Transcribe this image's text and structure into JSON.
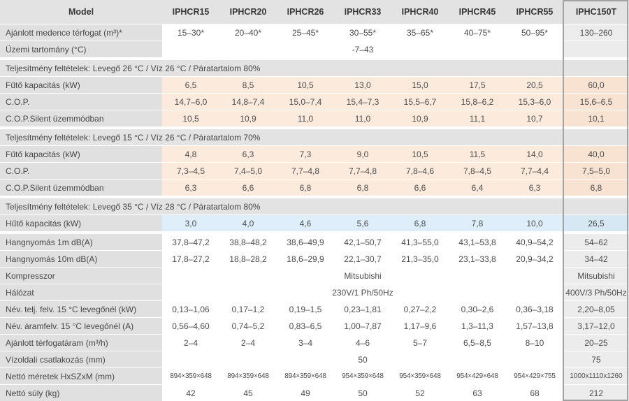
{
  "colors": {
    "header_gray": "#e3e3e3",
    "label_gray": "#e0e0e0",
    "heating_peach": "#fcebdc",
    "cooling_blue": "#deeefa",
    "last_column_tint": "#ececec",
    "last_column_border": "#a3a3a3"
  },
  "table": {
    "header": {
      "model_label": "Model",
      "columns": [
        "IPHCR15",
        "IPHCR20",
        "IPHCR26",
        "IPHCR33",
        "IPHCR40",
        "IPHCR45",
        "IPHCR55"
      ],
      "last_column": "IPHC150T"
    },
    "rows": [
      {
        "type": "data",
        "bg": "white",
        "label": "Ajánlott medence térfogat (m³)*",
        "cells": [
          "15–30*",
          "20–40*",
          "25–45*",
          "30–55*",
          "35–65*",
          "40–75*",
          "50–95*"
        ],
        "last": "130–260"
      },
      {
        "type": "data",
        "bg": "white",
        "label": "Üzemi tartomány (°C)",
        "span": "-7–43",
        "last": ""
      },
      {
        "type": "section",
        "label": "Teljesítmény feltételek: Levegő 26 °C / Víz 26 °C / Páratartalom 80%"
      },
      {
        "type": "data",
        "bg": "peach",
        "label": "Fűtő kapacitás (kW)",
        "cells": [
          "6,5",
          "8,5",
          "10,5",
          "13,0",
          "15,0",
          "17,5",
          "20,5"
        ],
        "last": "60,0"
      },
      {
        "type": "data",
        "bg": "peach",
        "label": "C.O.P.",
        "cells": [
          "14,7–6,0",
          "14,8–7,4",
          "15,0–7,4",
          "15,4–7,3",
          "15,5–6,7",
          "15,8–6,2",
          "15,3–6,0"
        ],
        "last": "15,6–6,5"
      },
      {
        "type": "data",
        "bg": "peach",
        "label": "C.O.P.Silent üzemmódban",
        "cells": [
          "10,5",
          "10,9",
          "11,0",
          "11,0",
          "10,9",
          "11,1",
          "10,7"
        ],
        "last": "10,1"
      },
      {
        "type": "section",
        "label": "Teljesítmény feltételek: Levegő 15 °C / Víz 26 °C / Páratartalom 70%"
      },
      {
        "type": "data",
        "bg": "peach",
        "label": "Fűtő kapacitás (kW)",
        "cells": [
          "4,8",
          "6,3",
          "7,3",
          "9,0",
          "10,5",
          "11,5",
          "14,0"
        ],
        "last": "40,0"
      },
      {
        "type": "data",
        "bg": "peach",
        "label": "C.O.P.",
        "cells": [
          "7,3–4,5",
          "7,4–5,0",
          "7,7–4,8",
          "7,7–4,8",
          "7,8–4,6",
          "7,8–4,5",
          "7,7–4,4"
        ],
        "last": "7,5–5,0"
      },
      {
        "type": "data",
        "bg": "peach",
        "label": "C.O.P.Silent üzemmódban",
        "cells": [
          "6,3",
          "6,6",
          "6,8",
          "6,8",
          "6,6",
          "6,4",
          "6,3"
        ],
        "last": "6,8"
      },
      {
        "type": "section",
        "label": "Teljesítmény feltételek: Levegő 35 °C / Víz 28 °C / Páratartalom 80%"
      },
      {
        "type": "data",
        "bg": "blue",
        "label": "Hűtő kapacitás (kW)",
        "cells": [
          "3,0",
          "4,0",
          "4,6",
          "5,6",
          "6,8",
          "7,8",
          "10,0"
        ],
        "last": "26,5"
      },
      {
        "type": "data",
        "bg": "white",
        "gap": true,
        "label": "Hangnyomás 1m dB(A)",
        "cells": [
          "37,8–47,2",
          "38,8–48,2",
          "38,6–49,9",
          "42,1–50,7",
          "41,3–55,0",
          "43,1–53,8",
          "40,9–54,2"
        ],
        "last": "54–62"
      },
      {
        "type": "data",
        "bg": "white",
        "label": "Hangnyomás 10m dB(A)",
        "cells": [
          "17,8–27,2",
          "18,8–28,2",
          "18,6–29,9",
          "22,1–30,7",
          "21,3–35,0",
          "23,1–33,8",
          "20,9–34,2"
        ],
        "last": "34–42"
      },
      {
        "type": "data",
        "bg": "white",
        "label": "Kompresszor",
        "span": "Mitsubishi",
        "last": "Mitsubishi"
      },
      {
        "type": "data",
        "bg": "white",
        "label": "Hálózat",
        "span": "230V/1 Ph/50Hz",
        "last": "400V/3 Ph/50Hz"
      },
      {
        "type": "data",
        "bg": "white",
        "label": "Név. telj. felv. 15 °C levegőnél (kW)",
        "cells": [
          "0,13–1,06",
          "0,17–1,2",
          "0,19–1,5",
          "0,23–1,81",
          "0,27–2,2",
          "0,30–2,6",
          "0,36–3,18"
        ],
        "last": "2,20–8,05"
      },
      {
        "type": "data",
        "bg": "white",
        "label": "Név. áramfelv. 15 °C levegőnél (A)",
        "cells": [
          "0,56–4,60",
          "0,74–5,2",
          "0,83–6,5",
          "1,00–7,87",
          "1,17–9,6",
          "1,3–11,3",
          "1,57–13,8"
        ],
        "last": "3,17–12,0"
      },
      {
        "type": "data",
        "bg": "white",
        "label": "Ajánlott térfogatáram (m³/h)",
        "cells": [
          "2–4",
          "2–4",
          "3–4",
          "4–6",
          "5–7",
          "6,5–8,5",
          "8–10"
        ],
        "last": "20–25"
      },
      {
        "type": "data",
        "bg": "white",
        "label": "Vízoldali csatlakozás (mm)",
        "span": "50",
        "last": "75"
      },
      {
        "type": "data",
        "bg": "white",
        "small": true,
        "label": "Nettó méretek HxSZxM (mm)",
        "cells": [
          "894×359×648",
          "894×359×648",
          "894×359×648",
          "954×359×648",
          "954×359×648",
          "954×429×648",
          "954×429×755"
        ],
        "last": "1000x1110x1260"
      },
      {
        "type": "data",
        "bg": "white",
        "label": "Nettó súly (kg)",
        "cells": [
          "42",
          "45",
          "49",
          "50",
          "52",
          "63",
          "68"
        ],
        "last": "212"
      }
    ]
  }
}
